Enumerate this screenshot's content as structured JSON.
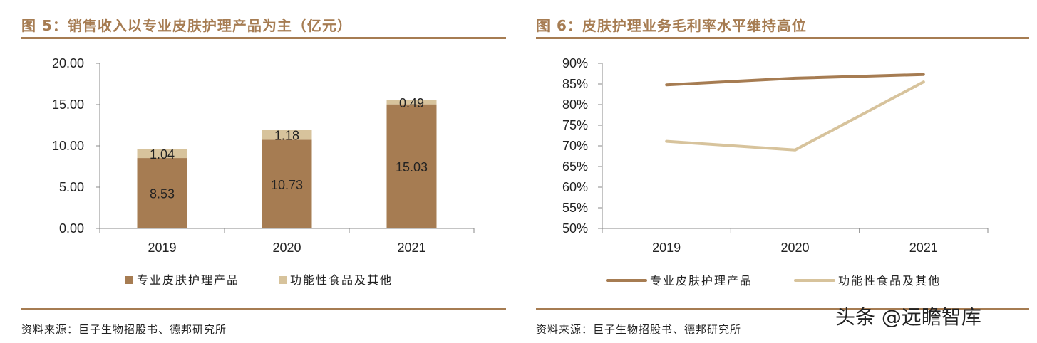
{
  "charts": {
    "left": {
      "title": "图 5：销售收入以专业皮肤护理产品为主（亿元）",
      "source": "资料来源：巨子生物招股书、德邦研究所"
    },
    "right": {
      "title": "图 6：皮肤护理业务毛利率水平维持高位",
      "source": "资料来源：巨子生物招股书、德邦研究所"
    }
  },
  "watermark": "头条 @远瞻智库",
  "colors": {
    "accent": "#a67c52",
    "series_dark": "#a67c52",
    "series_light": "#d7c39c"
  },
  "chart_data": [
    {
      "type": "bar",
      "stacked": true,
      "title": "图 5：销售收入以专业皮肤护理产品为主（亿元）",
      "categories": [
        "2019",
        "2020",
        "2021"
      ],
      "series": [
        {
          "name": "专业皮肤护理产品",
          "values": [
            8.53,
            10.73,
            15.03
          ],
          "labels": [
            "8.53",
            "10.73",
            "15.03"
          ]
        },
        {
          "name": "功能性食品及其他",
          "values": [
            1.04,
            1.18,
            0.49
          ],
          "labels": [
            "1.04",
            "1.18",
            "0.49"
          ]
        }
      ],
      "ylim": [
        0,
        20
      ],
      "yticks": [
        "0.00",
        "5.00",
        "10.00",
        "15.00",
        "20.00"
      ],
      "legend": "bottom"
    },
    {
      "type": "line",
      "title": "图 6：皮肤护理业务毛利率水平维持高位",
      "categories": [
        "2019",
        "2020",
        "2021"
      ],
      "series": [
        {
          "name": "专业皮肤护理产品",
          "values": [
            84.8,
            86.4,
            87.3
          ]
        },
        {
          "name": "功能性食品及其他",
          "values": [
            71.1,
            69.0,
            85.5
          ]
        }
      ],
      "ylim": [
        50,
        90
      ],
      "yticks": [
        "50%",
        "55%",
        "60%",
        "65%",
        "70%",
        "75%",
        "80%",
        "85%",
        "90%"
      ],
      "legend": "bottom"
    }
  ]
}
